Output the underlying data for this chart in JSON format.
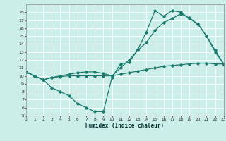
{
  "xlabel": "Humidex (Indice chaleur)",
  "bg_color": "#cceee8",
  "grid_color": "#ffffff",
  "line_color": "#1a7a6e",
  "line1": {
    "x": [
      0,
      1,
      2,
      3,
      4,
      5,
      6,
      7,
      8,
      9,
      10,
      11,
      12,
      13,
      14,
      15,
      16,
      17,
      18,
      19,
      20,
      21,
      22,
      23
    ],
    "y": [
      10.5,
      10.0,
      9.5,
      8.5,
      8.0,
      7.5,
      6.5,
      6.0,
      5.5,
      5.5,
      9.8,
      11.5,
      11.7,
      13.3,
      15.5,
      18.2,
      17.5,
      18.2,
      18.0,
      17.2,
      16.5,
      15.0,
      13.0,
      11.5
    ]
  },
  "line2": {
    "x": [
      0,
      1,
      2,
      3,
      4,
      5,
      6,
      7,
      8,
      9,
      10,
      11,
      12,
      13,
      14,
      15,
      16,
      17,
      18,
      19,
      20,
      21,
      22,
      23
    ],
    "y": [
      10.5,
      10.0,
      9.5,
      9.8,
      10.0,
      10.2,
      10.4,
      10.5,
      10.5,
      10.3,
      10.0,
      11.0,
      12.0,
      13.2,
      14.2,
      15.7,
      16.7,
      17.2,
      17.8,
      17.3,
      16.5,
      15.0,
      13.2,
      11.5
    ]
  },
  "line3": {
    "x": [
      0,
      1,
      2,
      3,
      4,
      5,
      6,
      7,
      8,
      9,
      10,
      11,
      12,
      13,
      14,
      15,
      16,
      17,
      18,
      19,
      20,
      21,
      22,
      23
    ],
    "y": [
      10.5,
      10.0,
      9.5,
      9.8,
      9.9,
      10.0,
      10.0,
      10.0,
      10.0,
      10.0,
      10.0,
      10.2,
      10.4,
      10.6,
      10.8,
      11.0,
      11.2,
      11.3,
      11.4,
      11.5,
      11.6,
      11.6,
      11.5,
      11.5
    ]
  },
  "xlim": [
    0,
    23
  ],
  "ylim": [
    5,
    19
  ],
  "yticks": [
    5,
    6,
    7,
    8,
    9,
    10,
    11,
    12,
    13,
    14,
    15,
    16,
    17,
    18
  ],
  "xticks": [
    0,
    1,
    2,
    3,
    4,
    5,
    6,
    7,
    8,
    9,
    10,
    11,
    12,
    13,
    14,
    15,
    16,
    17,
    18,
    19,
    20,
    21,
    22,
    23
  ]
}
